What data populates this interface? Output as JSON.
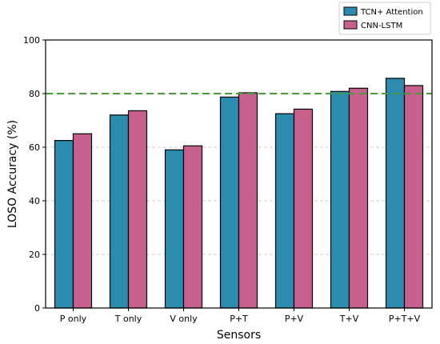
{
  "colors": {
    "series_0": "#2b8cb0",
    "series_1": "#c8608e",
    "reference_line": "#4a9a3c",
    "grid": "#bbbbbb"
  },
  "chart_data": {
    "type": "bar",
    "title": "",
    "xlabel": "Sensors",
    "ylabel": "LOSO Accuracy (%)",
    "ylim": [
      0,
      100
    ],
    "yticks": [
      0,
      20,
      40,
      60,
      80,
      100
    ],
    "grid": true,
    "legend_position": "top-right",
    "categories": [
      "P only",
      "T only",
      "V only",
      "P+T",
      "P+V",
      "T+V",
      "P+T+V"
    ],
    "series": [
      {
        "name": "TCN+ Attention",
        "values": [
          62.5,
          72,
          59,
          78.7,
          72.5,
          80.8,
          85.7
        ]
      },
      {
        "name": "CNN-LSTM",
        "values": [
          65,
          73.6,
          60.5,
          80.3,
          74.2,
          82,
          83
        ]
      }
    ],
    "reference_line": {
      "y": 80,
      "style": "dashed"
    }
  }
}
